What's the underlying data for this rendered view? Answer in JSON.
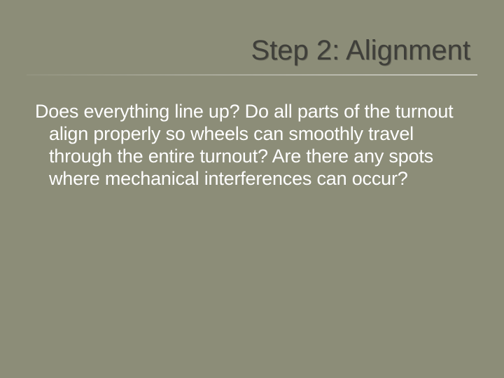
{
  "slide": {
    "title": "Step 2: Alignment",
    "body": "Does everything line up?  Do all parts of the turnout align properly so wheels can smoothly travel through the entire turnout?  Are there any spots where mechanical interferences can occur?",
    "background_color": "#8c8d78",
    "title_color": "#3f3f3a",
    "body_color": "#ffffff",
    "title_fontsize": 40,
    "body_fontsize": 27,
    "underline_gradient_start": "rgba(255,255,255,0.05)",
    "underline_gradient_end": "rgba(255,255,255,0.55)"
  }
}
